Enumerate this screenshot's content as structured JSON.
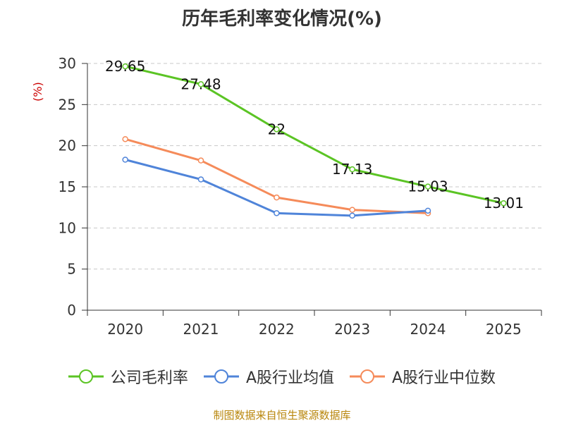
{
  "chart_data": {
    "type": "line",
    "title": "历年毛利率变化情况(%)",
    "ylabel": "(%)",
    "xlabel": "",
    "categories": [
      "2020",
      "2021",
      "2022",
      "2023",
      "2024",
      "2025"
    ],
    "ylim": [
      0,
      30
    ],
    "yticks": [
      0,
      5,
      10,
      15,
      20,
      25,
      30
    ],
    "grid": true,
    "legend_position": "bottom",
    "series": [
      {
        "name": "公司毛利率",
        "color": "#5bc424",
        "values": [
          29.65,
          27.48,
          22,
          17.13,
          15.03,
          13.01
        ],
        "data_labels": [
          "29.65",
          "27.48",
          "22",
          "17.13",
          "15.03",
          "13.01"
        ]
      },
      {
        "name": "A股行业均值",
        "color": "#4f84d9",
        "values": [
          18.3,
          15.9,
          11.8,
          11.5,
          12.1,
          null
        ],
        "data_labels": []
      },
      {
        "name": "A股行业中位数",
        "color": "#f58b5a",
        "values": [
          20.8,
          18.2,
          13.7,
          12.2,
          11.8,
          null
        ],
        "data_labels": []
      }
    ]
  },
  "source_text": "制图数据来自恒生聚源数据库"
}
